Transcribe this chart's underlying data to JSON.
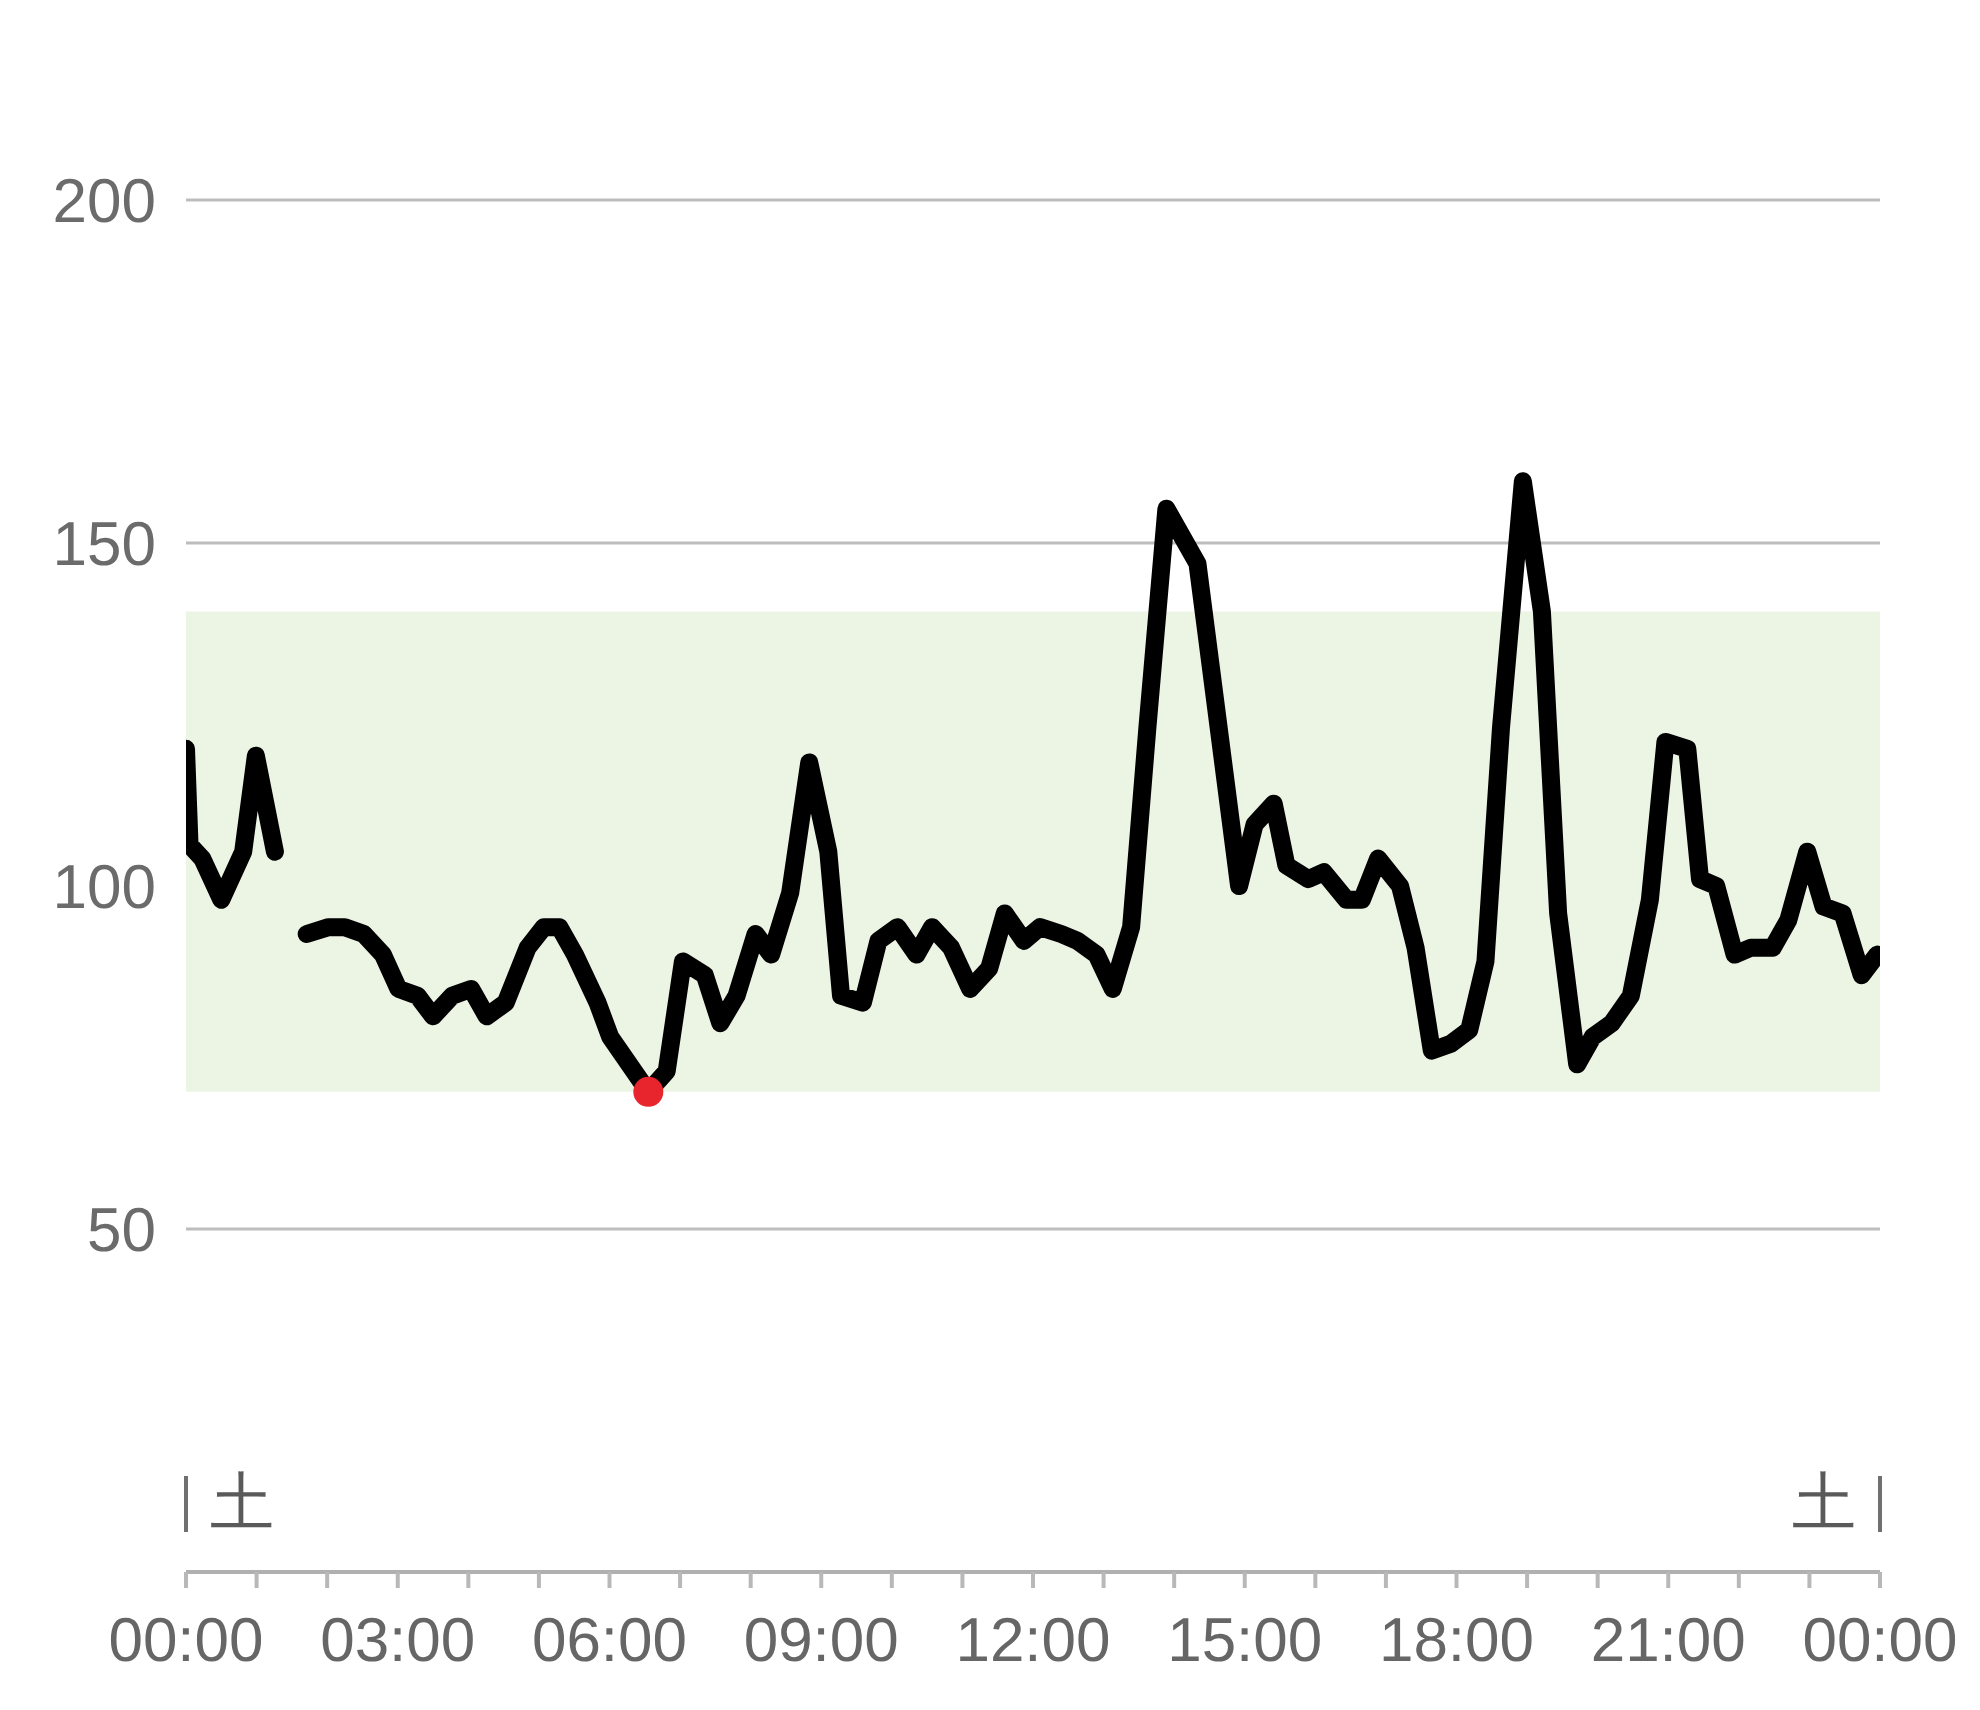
{
  "chart_data": {
    "type": "line",
    "series": [
      {
        "color": "#000000",
        "x": [
          0,
          0.05,
          0.23,
          0.5,
          0.81,
          0.99,
          1.26,
          1.5,
          1.71,
          2.02,
          2.25,
          2.52,
          2.79,
          3.01,
          3.28,
          3.5,
          3.77,
          4.04,
          4.26,
          4.53,
          4.84,
          5.07,
          5.29,
          5.51,
          5.83,
          6.01,
          6.28,
          6.55,
          6.81,
          7.04,
          7.35,
          7.57,
          7.8,
          8.07,
          8.29,
          8.56,
          8.83,
          9.1,
          9.28,
          9.59,
          9.81,
          10.08,
          10.35,
          10.57,
          10.84,
          11.11,
          11.38,
          11.6,
          11.87,
          12.1,
          12.4,
          12.63,
          12.9,
          13.13,
          13.39,
          13.62,
          13.89,
          14.33,
          14.92,
          15.14,
          15.41,
          15.59,
          15.9,
          16.12,
          16.44,
          16.66,
          16.89,
          17.2,
          17.42,
          17.65,
          17.92,
          18.18,
          18.41,
          18.63,
          18.94,
          19.21,
          19.44,
          19.71,
          19.93,
          20.2,
          20.47,
          20.74,
          20.96,
          21.27,
          21.45,
          21.68,
          21.94,
          22.17,
          22.48,
          22.7,
          22.97,
          23.2,
          23.47,
          23.74,
          23.96
        ],
        "values": [
          120,
          106,
          104,
          98,
          105,
          119,
          105,
          null,
          93,
          94,
          94,
          93,
          90,
          85,
          84,
          81,
          84,
          85,
          81,
          83,
          91,
          94,
          94,
          90,
          83,
          78,
          74,
          70,
          73,
          89,
          87,
          80,
          84,
          93,
          90,
          99,
          118,
          105,
          84,
          83,
          92,
          94,
          90,
          94,
          91,
          85,
          88,
          96,
          92,
          94,
          93,
          92,
          90,
          85,
          94,
          123,
          155,
          147,
          100,
          109,
          112,
          103,
          101,
          102,
          98,
          98,
          104,
          100,
          91,
          76,
          77,
          79,
          89,
          123,
          159,
          140,
          96,
          74,
          78,
          80,
          84,
          98,
          121,
          120,
          101,
          100,
          90,
          91,
          91,
          95,
          105,
          97,
          96,
          87,
          90
        ]
      },
      {
        "type": "scatter",
        "color": "#e8242c",
        "x": [
          6.55
        ],
        "values": [
          70
        ]
      }
    ],
    "xlim": [
      0,
      24
    ],
    "xticks": [
      {
        "value": 0,
        "label": "00:00"
      },
      {
        "value": 1,
        "label": null
      },
      {
        "value": 2,
        "label": null
      },
      {
        "value": 3,
        "label": "03:00"
      },
      {
        "value": 4,
        "label": null
      },
      {
        "value": 5,
        "label": null
      },
      {
        "value": 6,
        "label": "06:00"
      },
      {
        "value": 7,
        "label": null
      },
      {
        "value": 8,
        "label": null
      },
      {
        "value": 9,
        "label": "09:00"
      },
      {
        "value": 10,
        "label": null
      },
      {
        "value": 11,
        "label": null
      },
      {
        "value": 12,
        "label": "12:00"
      },
      {
        "value": 13,
        "label": null
      },
      {
        "value": 14,
        "label": null
      },
      {
        "value": 15,
        "label": "15:00"
      },
      {
        "value": 16,
        "label": null
      },
      {
        "value": 17,
        "label": null
      },
      {
        "value": 18,
        "label": "18:00"
      },
      {
        "value": 19,
        "label": null
      },
      {
        "value": 20,
        "label": null
      },
      {
        "value": 21,
        "label": "21:00"
      },
      {
        "value": 22,
        "label": null
      },
      {
        "value": 23,
        "label": null
      },
      {
        "value": 24,
        "label": "00:00"
      }
    ],
    "ylim": [
      0,
      200
    ],
    "yticks": [
      50,
      100,
      150,
      200
    ],
    "grid": "y",
    "bands": [
      {
        "axis": "y",
        "from": 70,
        "to": 140,
        "color": "#ecf4e4"
      }
    ],
    "annotations": [
      "土",
      "土"
    ]
  }
}
